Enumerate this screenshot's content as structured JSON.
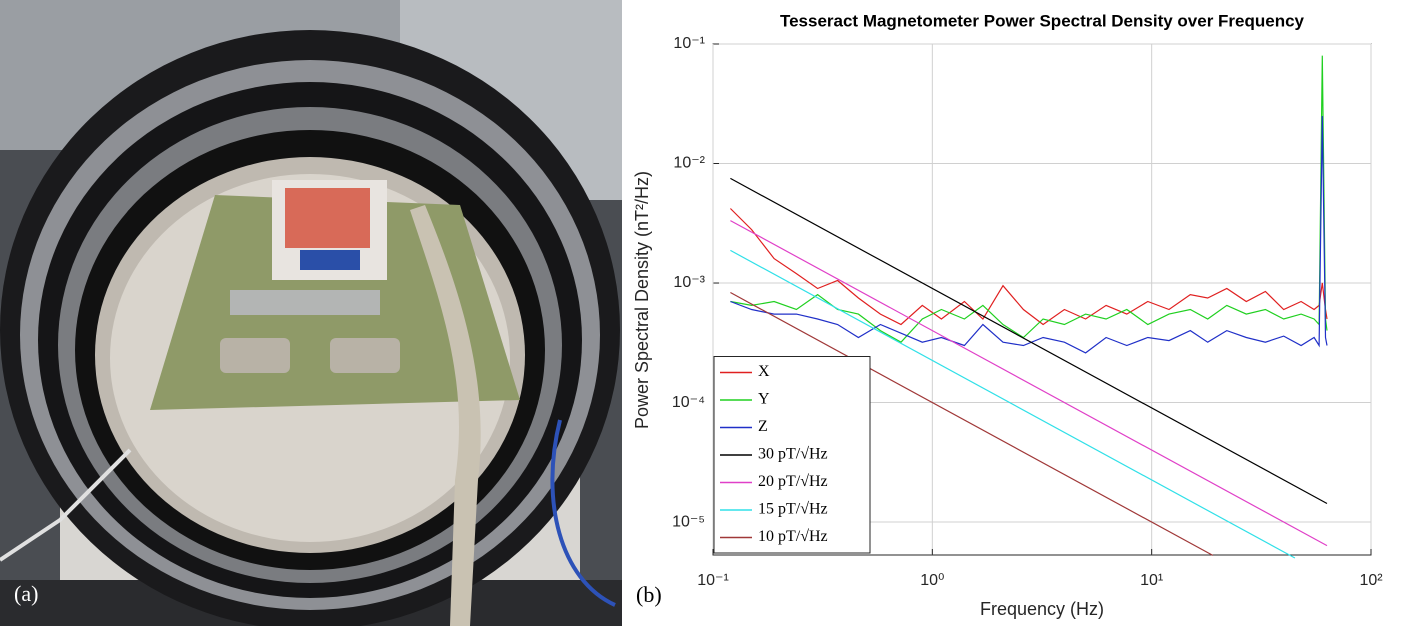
{
  "panels": {
    "a": "(a)",
    "b": "(b)"
  },
  "chart_data": {
    "type": "line",
    "title": "Tesseract Magnetometer Power Spectral Density over Frequency",
    "x_label": "Frequency (Hz)",
    "y_label": "Power Spectral Density (nT²/Hz)",
    "log_x": true,
    "log_y": true,
    "grid": true,
    "legend": "lower left",
    "xlim": [
      0.1,
      100
    ],
    "xticks": [
      {
        "value": 0.1,
        "label": "10⁻¹"
      },
      {
        "value": 1,
        "label": "10⁰"
      },
      {
        "value": 10,
        "label": "10¹"
      },
      {
        "value": 100,
        "label": "10²"
      }
    ],
    "ylim": [
      5.3e-06,
      0.1
    ],
    "yticks": [
      {
        "value": 1e-05,
        "label": "10⁻⁵"
      },
      {
        "value": 0.0001,
        "label": "10⁻⁴"
      },
      {
        "value": 0.001,
        "label": "10⁻³"
      },
      {
        "value": 0.01,
        "label": "10⁻²"
      },
      {
        "value": 0.1,
        "label": "10⁻¹"
      }
    ],
    "series": [
      {
        "name": "X",
        "color": "#e02020",
        "x": [
          0.12,
          0.15,
          0.19,
          0.24,
          0.3,
          0.37,
          0.46,
          0.58,
          0.72,
          0.9,
          1.1,
          1.4,
          1.7,
          2.1,
          2.6,
          3.2,
          4,
          5,
          6.2,
          7.7,
          9.6,
          12,
          15,
          18,
          22,
          27,
          33,
          40,
          48,
          55,
          58,
          60,
          62,
          63
        ],
        "values": [
          0.0042,
          0.0028,
          0.0016,
          0.0012,
          0.0009,
          0.00105,
          0.00075,
          0.00055,
          0.00045,
          0.00065,
          0.0005,
          0.0007,
          0.0005,
          0.00095,
          0.0006,
          0.00045,
          0.0006,
          0.0005,
          0.00065,
          0.00055,
          0.0007,
          0.0006,
          0.0008,
          0.00075,
          0.0009,
          0.0007,
          0.00085,
          0.0006,
          0.0007,
          0.0006,
          0.00065,
          0.001,
          0.0006,
          0.0005
        ]
      },
      {
        "name": "Y",
        "color": "#20d020",
        "x": [
          0.12,
          0.15,
          0.19,
          0.24,
          0.3,
          0.37,
          0.46,
          0.58,
          0.72,
          0.9,
          1.1,
          1.4,
          1.7,
          2.1,
          2.6,
          3.2,
          4,
          5,
          6.2,
          7.7,
          9.6,
          12,
          15,
          18,
          22,
          27,
          33,
          40,
          48,
          55,
          58,
          60,
          62,
          63
        ],
        "values": [
          0.0007,
          0.00065,
          0.0007,
          0.0006,
          0.0008,
          0.0006,
          0.00055,
          0.0004,
          0.00032,
          0.0005,
          0.0006,
          0.0005,
          0.00065,
          0.00045,
          0.00035,
          0.0005,
          0.00045,
          0.00055,
          0.0005,
          0.0006,
          0.00045,
          0.00055,
          0.0006,
          0.0005,
          0.00065,
          0.00055,
          0.0006,
          0.0005,
          0.00055,
          0.0005,
          0.00045,
          0.08,
          0.0005,
          0.0004
        ]
      },
      {
        "name": "Z",
        "color": "#2030c8",
        "x": [
          0.12,
          0.15,
          0.19,
          0.24,
          0.3,
          0.37,
          0.46,
          0.58,
          0.72,
          0.9,
          1.1,
          1.4,
          1.7,
          2.1,
          2.6,
          3.2,
          4,
          5,
          6.2,
          7.7,
          9.6,
          12,
          15,
          18,
          22,
          27,
          33,
          40,
          48,
          55,
          58,
          60,
          62,
          63
        ],
        "values": [
          0.0007,
          0.0006,
          0.00055,
          0.00055,
          0.0005,
          0.00045,
          0.00035,
          0.00045,
          0.00038,
          0.00032,
          0.00035,
          0.0003,
          0.00045,
          0.00032,
          0.0003,
          0.00035,
          0.00032,
          0.00026,
          0.00035,
          0.0003,
          0.00035,
          0.00033,
          0.0004,
          0.00032,
          0.0004,
          0.00035,
          0.00032,
          0.00036,
          0.0003,
          0.00035,
          0.0003,
          0.025,
          0.00035,
          0.0003
        ]
      },
      {
        "name": "30 pT/√Hz",
        "color": "#000000",
        "x": [
          0.12,
          63
        ],
        "values": [
          0.0075,
          1.43e-05
        ]
      },
      {
        "name": "20 pT/√Hz",
        "color": "#e040c8",
        "x": [
          0.12,
          63
        ],
        "values": [
          0.00333,
          6.35e-06
        ]
      },
      {
        "name": "15 pT/√Hz",
        "color": "#30e0e8",
        "x": [
          0.12,
          45
        ],
        "values": [
          0.001875,
          5e-06
        ]
      },
      {
        "name": "10 pT/√Hz",
        "color": "#a03838",
        "x": [
          0.12,
          19
        ],
        "values": [
          0.000833,
          5.26e-06
        ]
      }
    ]
  }
}
